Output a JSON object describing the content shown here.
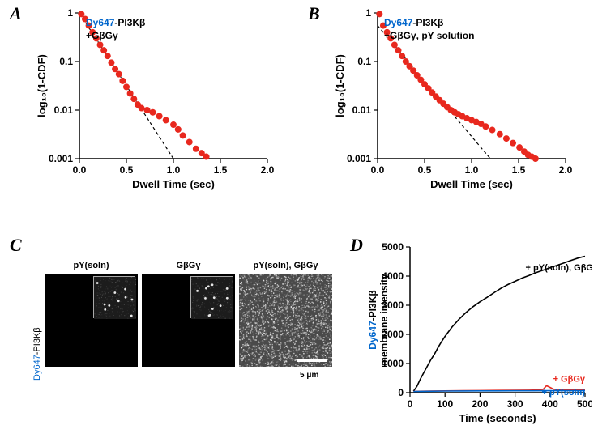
{
  "panelA": {
    "label": "A",
    "type": "scatter",
    "title_line1": "Dy647",
    "title_line1_rest": "-PI3Kβ",
    "title_line2": "+GβGγ",
    "xlabel": "Dwell Time (sec)",
    "ylabel": "log₁₀(1-CDF)",
    "xlim": [
      0,
      2.0
    ],
    "ylim": [
      0.001,
      1.0
    ],
    "xticks": [
      0.0,
      0.5,
      1.0,
      1.5,
      2.0
    ],
    "yticks": [
      0.001,
      0.01,
      0.1,
      1
    ],
    "ytick_labels": [
      "0.001",
      "0.01",
      "0.1",
      "1"
    ],
    "marker_color": "#e8281e",
    "marker_size": 4,
    "line_color": "#000000",
    "line_dash": "4,3",
    "dash_x": [
      0.0,
      1.0
    ],
    "dash_y": [
      1.0,
      0.001
    ],
    "points_x": [
      0.02,
      0.06,
      0.1,
      0.14,
      0.18,
      0.22,
      0.26,
      0.3,
      0.34,
      0.38,
      0.42,
      0.46,
      0.5,
      0.54,
      0.58,
      0.62,
      0.66,
      0.72,
      0.78,
      0.85,
      0.92,
      1.0,
      1.05,
      1.1,
      1.17,
      1.24,
      1.3,
      1.35
    ],
    "points_y": [
      0.95,
      0.75,
      0.55,
      0.4,
      0.3,
      0.22,
      0.17,
      0.13,
      0.095,
      0.07,
      0.055,
      0.04,
      0.03,
      0.022,
      0.017,
      0.013,
      0.011,
      0.01,
      0.009,
      0.0075,
      0.0062,
      0.005,
      0.004,
      0.003,
      0.0022,
      0.0016,
      0.0013,
      0.0011
    ],
    "background_color": "#ffffff"
  },
  "panelB": {
    "label": "B",
    "type": "scatter",
    "title_line1": "Dy647",
    "title_line1_rest": "-PI3Kβ",
    "title_line2": "+GβGγ, pY solution",
    "xlabel": "Dwell Time (sec)",
    "ylabel": "log₁₀(1-CDF)",
    "xlim": [
      0,
      2.0
    ],
    "ylim": [
      0.001,
      1.0
    ],
    "xticks": [
      0.0,
      0.5,
      1.0,
      1.5,
      2.0
    ],
    "yticks": [
      0.001,
      0.01,
      0.1,
      1
    ],
    "ytick_labels": [
      "0.001",
      "0.01",
      "0.1",
      "1"
    ],
    "marker_color": "#e8281e",
    "marker_size": 4,
    "line_color": "#000000",
    "line_dash": "4,3",
    "dash_x": [
      0.0,
      1.2
    ],
    "dash_y": [
      0.55,
      0.001
    ],
    "points_x": [
      0.02,
      0.06,
      0.1,
      0.14,
      0.18,
      0.22,
      0.26,
      0.3,
      0.34,
      0.38,
      0.42,
      0.46,
      0.5,
      0.54,
      0.58,
      0.62,
      0.66,
      0.7,
      0.74,
      0.78,
      0.82,
      0.86,
      0.9,
      0.95,
      1.0,
      1.05,
      1.1,
      1.15,
      1.22,
      1.3,
      1.37,
      1.44,
      1.51,
      1.56,
      1.6,
      1.64,
      1.68
    ],
    "points_y": [
      0.95,
      0.55,
      0.4,
      0.3,
      0.22,
      0.17,
      0.13,
      0.1,
      0.08,
      0.065,
      0.052,
      0.042,
      0.034,
      0.028,
      0.023,
      0.019,
      0.016,
      0.0135,
      0.0115,
      0.01,
      0.009,
      0.0082,
      0.0075,
      0.0068,
      0.0062,
      0.0057,
      0.0052,
      0.0046,
      0.0039,
      0.0032,
      0.0026,
      0.0021,
      0.0017,
      0.0014,
      0.0012,
      0.0011,
      0.001
    ],
    "background_color": "#ffffff"
  },
  "panelC": {
    "label": "C",
    "ylabel_pre": "Dy647",
    "ylabel_rest": "-PI3Kβ",
    "titles": [
      "pY(soln)",
      "GβGγ",
      "pY(soln), GβGγ"
    ],
    "scalebar_label": "5 μm",
    "panel_bg": "#000000",
    "inset_border": "#c0c0c0"
  },
  "panelD": {
    "label": "D",
    "type": "line",
    "xlabel": "Time (seconds)",
    "ylabel_pre": "Dy647",
    "ylabel_rest": "-PI3Kβ",
    "ylabel_line2": "membrane intensity",
    "xlim": [
      0,
      500
    ],
    "ylim": [
      0,
      5000
    ],
    "xticks": [
      0,
      100,
      200,
      300,
      400,
      500
    ],
    "yticks": [
      0,
      1000,
      2000,
      3000,
      4000,
      5000
    ],
    "series": [
      {
        "label": "+ pY(soln), GβGγ",
        "color": "#000000",
        "x": [
          10,
          20,
          30,
          40,
          50,
          60,
          70,
          80,
          90,
          100,
          120,
          140,
          160,
          180,
          200,
          220,
          240,
          260,
          280,
          300,
          320,
          340,
          360,
          380,
          400,
          420,
          440,
          460,
          480,
          500
        ],
        "y": [
          50,
          220,
          480,
          700,
          920,
          1140,
          1320,
          1550,
          1750,
          1930,
          2250,
          2520,
          2750,
          2950,
          3120,
          3270,
          3430,
          3580,
          3710,
          3820,
          3930,
          4020,
          4120,
          4200,
          4290,
          4370,
          4450,
          4540,
          4620,
          4680
        ]
      },
      {
        "label": "+ GβGγ",
        "color": "#e8281e",
        "x": [
          10,
          50,
          100,
          150,
          200,
          250,
          300,
          340,
          360,
          380,
          390,
          400,
          410,
          420,
          440,
          480,
          500
        ],
        "y": [
          45,
          55,
          62,
          68,
          72,
          78,
          82,
          85,
          92,
          110,
          240,
          180,
          120,
          100,
          92,
          95,
          98
        ]
      },
      {
        "label": "+ pY(soln)",
        "color": "#0066cc",
        "x": [
          10,
          50,
          100,
          150,
          200,
          250,
          300,
          350,
          400,
          450,
          500
        ],
        "y": [
          40,
          48,
          55,
          58,
          60,
          62,
          63,
          65,
          66,
          67,
          68
        ]
      }
    ],
    "annotation_colors": {
      "black": "#000000",
      "red": "#e8281e",
      "blue": "#0066cc"
    },
    "background_color": "#ffffff"
  }
}
